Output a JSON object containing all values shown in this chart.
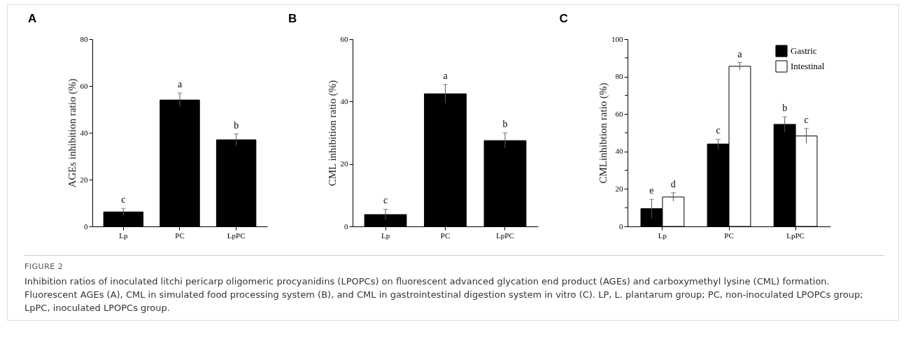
{
  "chart_data": [
    {
      "type": "bar",
      "title": "A",
      "ylabel": "AGEs inhibition ratio (%)",
      "categories": [
        "Lp",
        "PC",
        "LpPC"
      ],
      "values": [
        6.2,
        54,
        37
      ],
      "errors": [
        1.5,
        3,
        2.5
      ],
      "color": "#000000",
      "ylim": [
        0,
        80
      ],
      "yticks": [
        0,
        20,
        40,
        60,
        80
      ],
      "grid": false,
      "annotations": [
        {
          "text": "c",
          "x": "Lp",
          "y": 6.2
        },
        {
          "text": "a",
          "x": "PC",
          "y": 54
        },
        {
          "text": "b",
          "x": "LpPC",
          "y": 37
        },
        "FIGURE 2",
        "Inhibition ratios of inoculated litchi pericarp oligomeric procyanidins (LPOPCs) on fluorescent advanced glycation end product (AGEs) and carboxymethyl lysine (CML) formation. Fluorescent AGEs (A), CML in simulated food processing system (B), and CML in gastrointestinal digestion system in vitro (C). LP, L. plantarum group; PC, non-inoculated LPOPCs group; LpPC, inoculated LPOPCs group."
      ]
    },
    {
      "type": "bar",
      "title": "B",
      "ylabel": "CML inhibition ratio (%)",
      "categories": [
        "Lp",
        "PC",
        "LpPC"
      ],
      "values": [
        3.8,
        42.5,
        27.5
      ],
      "errors": [
        1.7,
        3,
        2.5
      ],
      "color": "#000000",
      "ylim": [
        0,
        60
      ],
      "yticks": [
        0,
        20,
        40,
        60
      ],
      "grid": false,
      "annotations": [
        {
          "text": "c",
          "x": "Lp",
          "y": 3.8
        },
        {
          "text": "a",
          "x": "PC",
          "y": 42.5
        },
        {
          "text": "b",
          "x": "LpPC",
          "y": 27.5
        }
      ]
    },
    {
      "type": "bar",
      "title": "C",
      "ylabel": "CMLinhibtion ratio (%)",
      "categories": [
        "Lp",
        "PC",
        "LpPC"
      ],
      "series": [
        {
          "name": "Gastric",
          "color": "#000000",
          "values": [
            9.5,
            44,
            54.5
          ],
          "errors": [
            5,
            2.5,
            4
          ]
        },
        {
          "name": "Intestinal",
          "color": "#ffffff",
          "values": [
            15.7,
            85.5,
            48.3
          ],
          "errors": [
            2.3,
            2,
            4
          ]
        }
      ],
      "ylim": [
        0,
        100
      ],
      "yticks": [
        0,
        {
          "value": 10,
          "label": null
        },
        20,
        {
          "value": 30,
          "label": null
        },
        40,
        {
          "value": 50,
          "label": null
        },
        60,
        {
          "value": 70,
          "label": null
        },
        80,
        {
          "value": 90,
          "label": null
        },
        100
      ],
      "grid": false,
      "legend": "top right",
      "annotations": [
        {
          "text": "e",
          "x": "Lp",
          "y": 9.5
        },
        {
          "text": "d",
          "x": "Lp",
          "y": 15.7
        },
        {
          "text": "c",
          "x": "PC",
          "y": 44
        },
        {
          "text": "a",
          "x": "PC",
          "y": 85.5
        },
        {
          "text": "b",
          "x": "LpPC",
          "y": 54.5
        },
        {
          "text": "c",
          "x": "LpPC",
          "y": 48.3
        }
      ]
    }
  ]
}
